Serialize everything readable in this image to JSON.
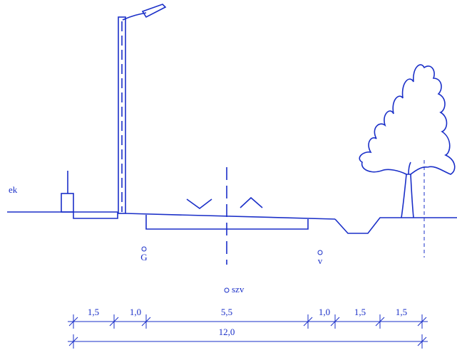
{
  "labels": {
    "edge": "ek",
    "g": "G",
    "v": "v",
    "szv": "szv"
  },
  "dimensions": {
    "parts": [
      "1,5",
      "1,0",
      "5,5",
      "1,0",
      "1,5",
      "1,5"
    ],
    "total": "12,0"
  }
}
